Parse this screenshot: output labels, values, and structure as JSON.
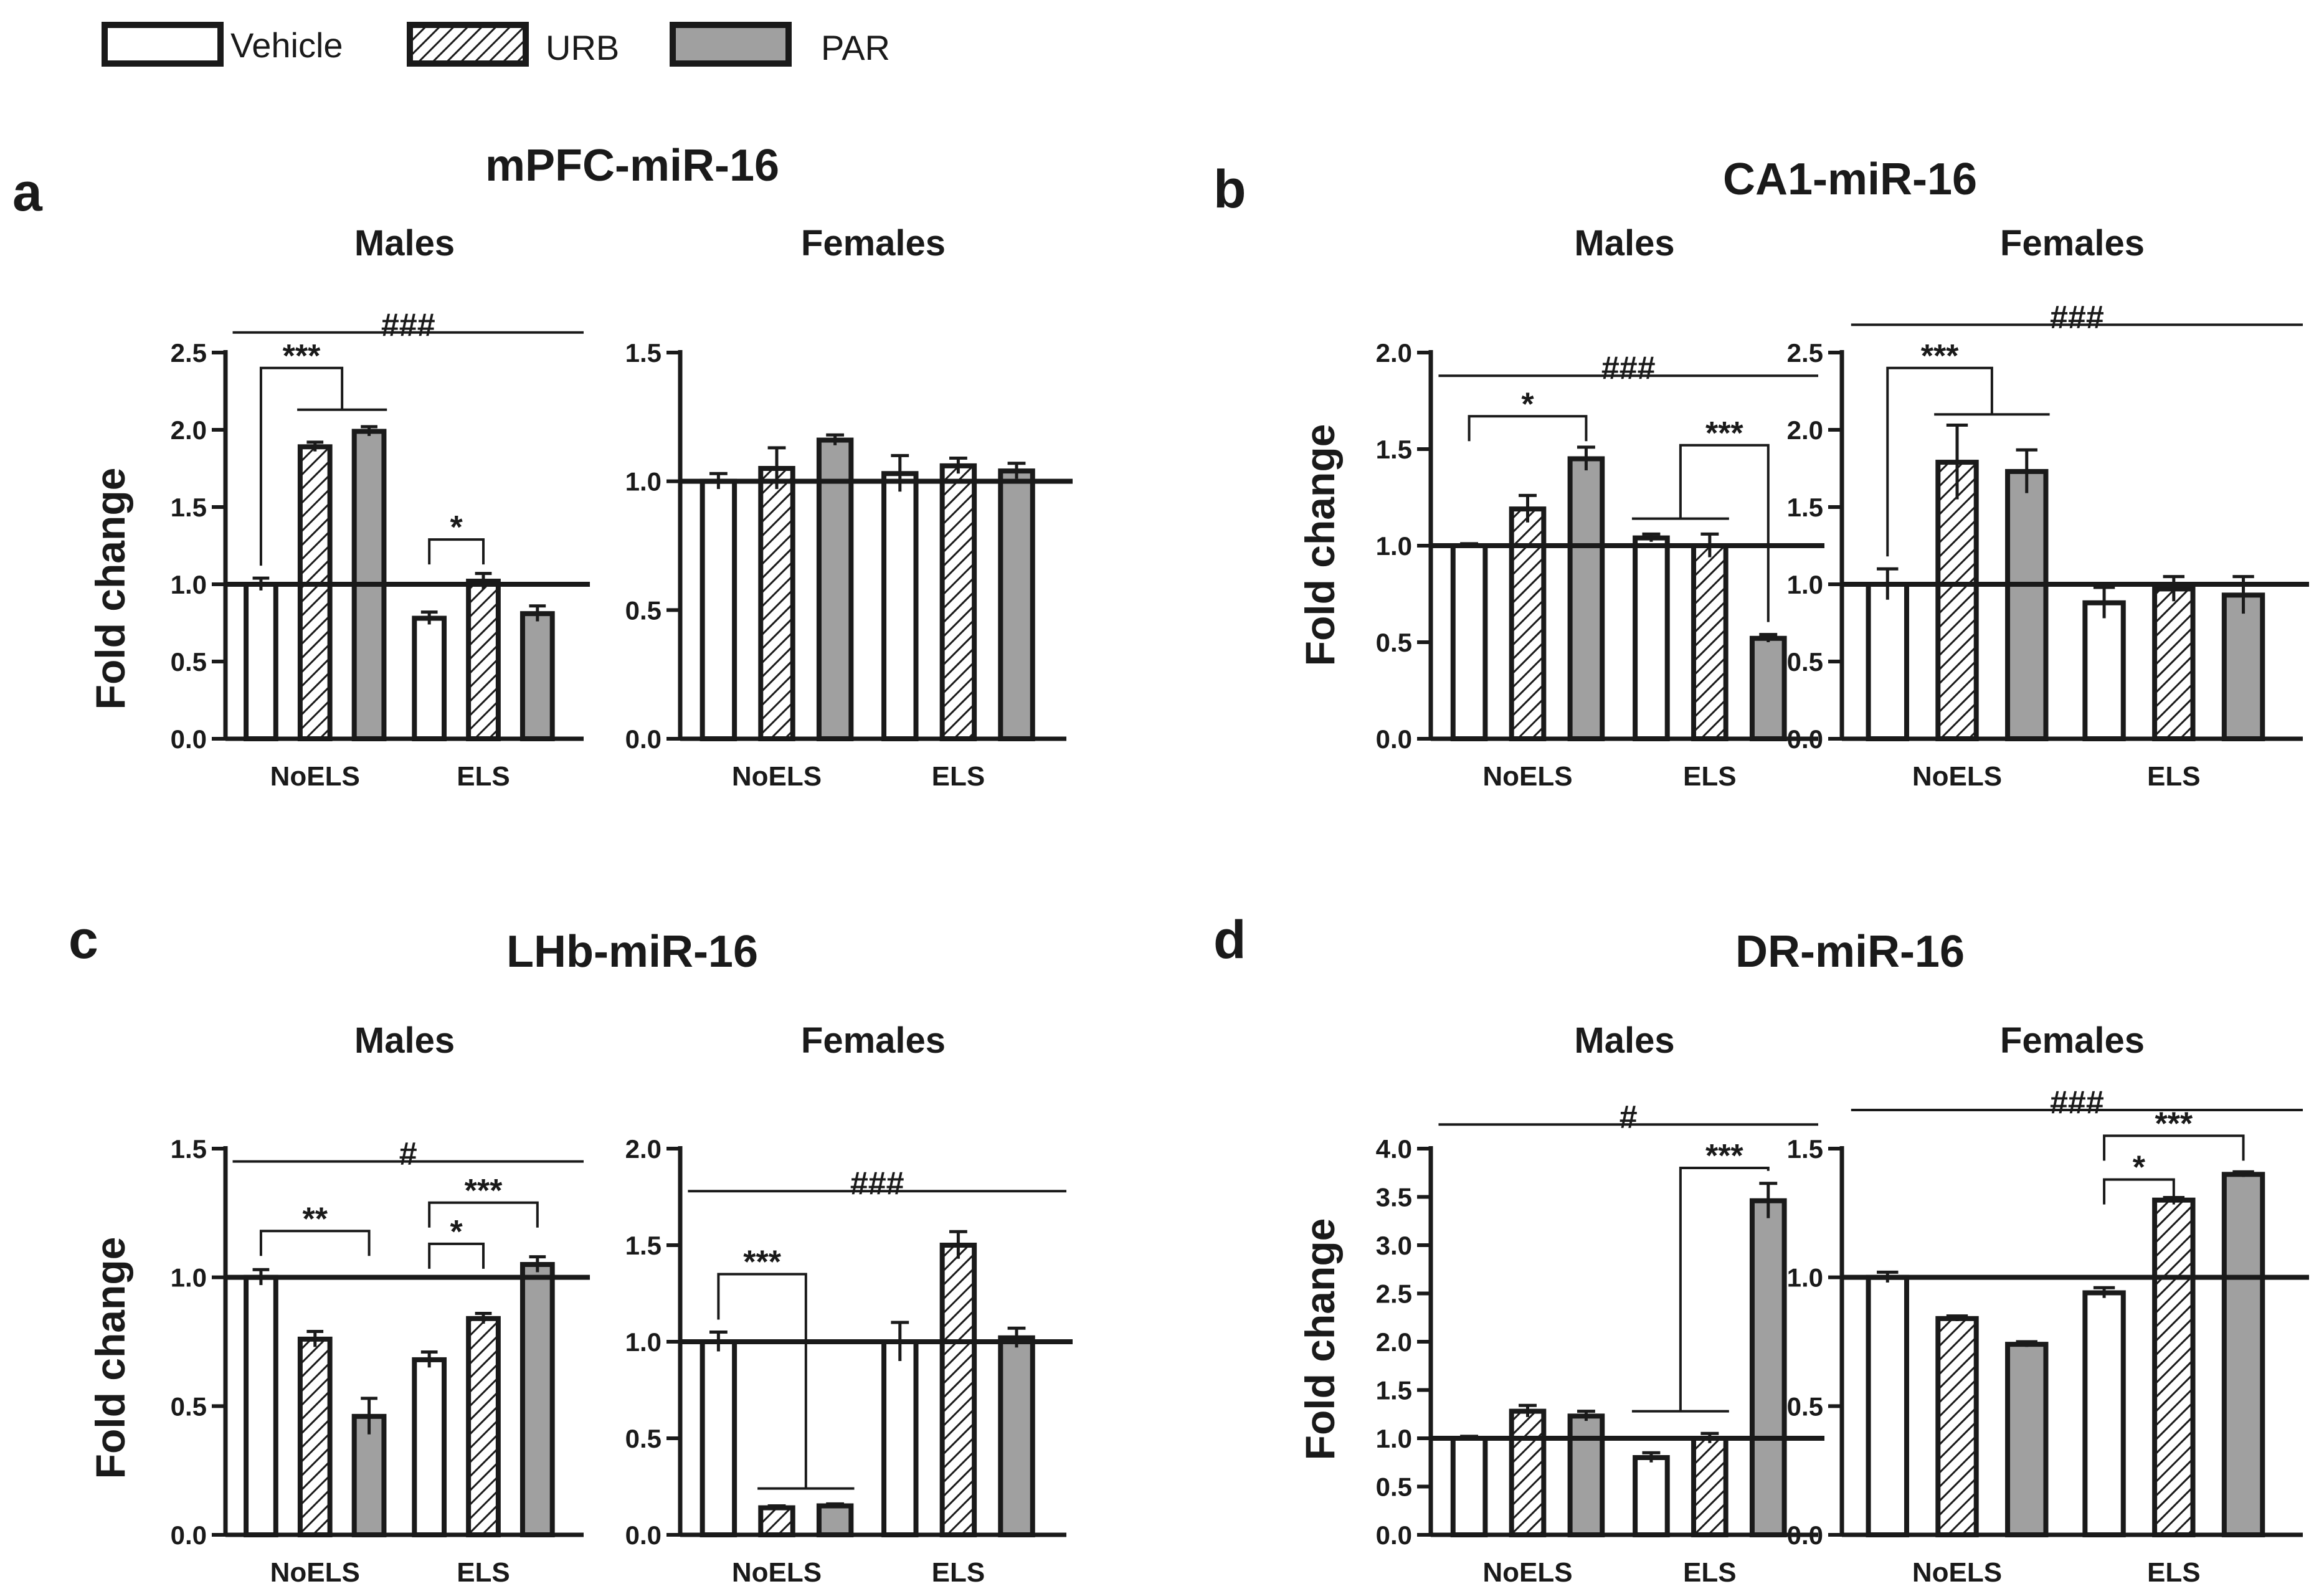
{
  "colors": {
    "vehicle_fill": "#ffffff",
    "par_fill": "#a0a0a0",
    "stroke": "#1a1a1a",
    "text": "#1a1a1a"
  },
  "legend": [
    {
      "label": "Vehicle",
      "pattern": "white"
    },
    {
      "label": "URB",
      "pattern": "hatch"
    },
    {
      "label": "PAR",
      "pattern": "grey"
    }
  ],
  "y_axis_label": "Fold change",
  "chart_data": [
    {
      "panel_letter": "a",
      "title": "mPFC-miR-16",
      "type": "bar",
      "subplots": [
        {
          "name": "Males",
          "ylim": [
            0,
            2.5
          ],
          "yticks": [
            "0.0",
            "0.5",
            "1.0",
            "1.5",
            "2.0",
            "2.5"
          ],
          "categories": [
            "NoELS",
            "ELS"
          ],
          "series": [
            {
              "name": "Vehicle",
              "values": [
                1.0,
                0.78
              ],
              "errors": [
                0.04,
                0.04
              ]
            },
            {
              "name": "URB",
              "values": [
                1.89,
                1.02
              ],
              "errors": [
                0.03,
                0.05
              ]
            },
            {
              "name": "PAR",
              "values": [
                1.99,
                0.81
              ],
              "errors": [
                0.03,
                0.05
              ]
            }
          ],
          "annotations": [
            {
              "type": "line",
              "text": "###",
              "y": 2.63,
              "from": [
                0,
                0
              ],
              "to": [
                1,
                2
              ]
            },
            {
              "type": "bracket_multi",
              "text": "***",
              "y": 2.4,
              "from": [
                0,
                0
              ],
              "to_group": [
                [
                  0,
                  1
                ],
                [
                  0,
                  2
                ]
              ],
              "to_y": 2.13
            },
            {
              "type": "bracket",
              "text": "*",
              "y": 1.29,
              "from": [
                1,
                0
              ],
              "to": [
                1,
                1
              ]
            }
          ]
        },
        {
          "name": "Females",
          "ylim": [
            0,
            1.5
          ],
          "yticks": [
            "0.0",
            "0.5",
            "1.0",
            "1.5"
          ],
          "categories": [
            "NoELS",
            "ELS"
          ],
          "series": [
            {
              "name": "Vehicle",
              "values": [
                1.0,
                1.03
              ],
              "errors": [
                0.03,
                0.07
              ]
            },
            {
              "name": "URB",
              "values": [
                1.05,
                1.06
              ],
              "errors": [
                0.08,
                0.03
              ]
            },
            {
              "name": "PAR",
              "values": [
                1.16,
                1.04
              ],
              "errors": [
                0.02,
                0.03
              ]
            }
          ],
          "annotations": []
        }
      ]
    },
    {
      "panel_letter": "b",
      "title": "CA1-miR-16",
      "type": "bar",
      "subplots": [
        {
          "name": "Males",
          "ylim": [
            0,
            2.0
          ],
          "yticks": [
            "0.0",
            "0.5",
            "1.0",
            "1.5",
            "2.0"
          ],
          "categories": [
            "NoELS",
            "ELS"
          ],
          "series": [
            {
              "name": "Vehicle",
              "values": [
                1.0,
                1.04
              ],
              "errors": [
                0.01,
                0.02
              ]
            },
            {
              "name": "URB",
              "values": [
                1.19,
                1.0
              ],
              "errors": [
                0.07,
                0.06
              ]
            },
            {
              "name": "PAR",
              "values": [
                1.45,
                0.52
              ],
              "errors": [
                0.06,
                0.02
              ]
            }
          ],
          "annotations": [
            {
              "type": "line",
              "text": "###",
              "y": 1.88,
              "from": [
                0,
                0
              ],
              "to": [
                1,
                2
              ]
            },
            {
              "type": "bracket",
              "text": "*",
              "y": 1.67,
              "from": [
                0,
                0
              ],
              "to": [
                0,
                2
              ]
            },
            {
              "type": "bracket_multi_right",
              "text": "***",
              "y": 1.52,
              "to": [
                1,
                2
              ],
              "from_group": [
                [
                  1,
                  0
                ],
                [
                  1,
                  1
                ]
              ],
              "from_y": 1.14
            }
          ]
        },
        {
          "name": "Females",
          "ylim": [
            0,
            2.5
          ],
          "yticks": [
            "0.0",
            "0.5",
            "1.0",
            "1.5",
            "2.0",
            "2.5"
          ],
          "categories": [
            "NoELS",
            "ELS"
          ],
          "series": [
            {
              "name": "Vehicle",
              "values": [
                1.0,
                0.88
              ],
              "errors": [
                0.1,
                0.1
              ]
            },
            {
              "name": "URB",
              "values": [
                1.79,
                0.97
              ],
              "errors": [
                0.24,
                0.08
              ]
            },
            {
              "name": "PAR",
              "values": [
                1.73,
                0.93
              ],
              "errors": [
                0.14,
                0.12
              ]
            }
          ],
          "annotations": [
            {
              "type": "line",
              "text": "###",
              "y": 2.68,
              "from": [
                0,
                0
              ],
              "to": [
                1,
                2
              ]
            },
            {
              "type": "bracket_multi",
              "text": "***",
              "y": 2.4,
              "from": [
                0,
                0
              ],
              "to_group": [
                [
                  0,
                  1
                ],
                [
                  0,
                  2
                ]
              ],
              "to_y": 2.1
            }
          ]
        }
      ]
    },
    {
      "panel_letter": "c",
      "title": "LHb-miR-16",
      "type": "bar",
      "subplots": [
        {
          "name": "Males",
          "ylim": [
            0,
            1.5
          ],
          "yticks": [
            "0.0",
            "0.5",
            "1.0",
            "1.5"
          ],
          "categories": [
            "NoELS",
            "ELS"
          ],
          "series": [
            {
              "name": "Vehicle",
              "values": [
                1.0,
                0.68
              ],
              "errors": [
                0.03,
                0.03
              ]
            },
            {
              "name": "URB",
              "values": [
                0.76,
                0.84
              ],
              "errors": [
                0.03,
                0.02
              ]
            },
            {
              "name": "PAR",
              "values": [
                0.46,
                1.05
              ],
              "errors": [
                0.07,
                0.03
              ]
            }
          ],
          "annotations": [
            {
              "type": "line",
              "text": "#",
              "y": 1.45,
              "from": [
                0,
                0
              ],
              "to": [
                1,
                2
              ]
            },
            {
              "type": "bracket",
              "text": "**",
              "y": 1.18,
              "from": [
                0,
                0
              ],
              "to": [
                0,
                2
              ]
            },
            {
              "type": "bracket",
              "text": "***",
              "y": 1.29,
              "from": [
                1,
                0
              ],
              "to": [
                1,
                2
              ]
            },
            {
              "type": "bracket",
              "text": "*",
              "y": 1.13,
              "from": [
                1,
                0
              ],
              "to": [
                1,
                1
              ]
            }
          ]
        },
        {
          "name": "Females",
          "ylim": [
            0,
            2.0
          ],
          "yticks": [
            "0.0",
            "0.5",
            "1.0",
            "1.5",
            "2.0"
          ],
          "categories": [
            "NoELS",
            "ELS"
          ],
          "series": [
            {
              "name": "Vehicle",
              "values": [
                1.0,
                1.0
              ],
              "errors": [
                0.05,
                0.1
              ]
            },
            {
              "name": "URB",
              "values": [
                0.14,
                1.5
              ],
              "errors": [
                0.01,
                0.07
              ]
            },
            {
              "name": "PAR",
              "values": [
                0.15,
                1.02
              ],
              "errors": [
                0.01,
                0.05
              ]
            }
          ],
          "annotations": [
            {
              "type": "line",
              "text": "###",
              "y": 1.78,
              "from": [
                0,
                0
              ],
              "to": [
                1,
                2
              ]
            },
            {
              "type": "bracket_multi",
              "text": "***",
              "y": 1.35,
              "from": [
                0,
                0
              ],
              "to_group": [
                [
                  0,
                  1
                ],
                [
                  0,
                  2
                ]
              ],
              "to_y": 0.24
            }
          ]
        }
      ]
    },
    {
      "panel_letter": "d",
      "title": "DR-miR-16",
      "type": "bar",
      "subplots": [
        {
          "name": "Males",
          "ylim": [
            0,
            4.0
          ],
          "yticks": [
            "0.0",
            "0.5",
            "1.0",
            "1.5",
            "2.0",
            "2.5",
            "3.0",
            "3.5",
            "4.0"
          ],
          "categories": [
            "NoELS",
            "ELS"
          ],
          "series": [
            {
              "name": "Vehicle",
              "values": [
                1.0,
                0.8
              ],
              "errors": [
                0.02,
                0.05
              ]
            },
            {
              "name": "URB",
              "values": [
                1.28,
                1.0
              ],
              "errors": [
                0.06,
                0.05
              ]
            },
            {
              "name": "PAR",
              "values": [
                1.23,
                3.46
              ],
              "errors": [
                0.05,
                0.18
              ]
            }
          ],
          "annotations": [
            {
              "type": "line",
              "text": "#",
              "y": 4.25,
              "from": [
                0,
                0
              ],
              "to": [
                1,
                2
              ]
            },
            {
              "type": "bracket_multi_right",
              "text": "***",
              "y": 3.8,
              "to": [
                1,
                2
              ],
              "from_group": [
                [
                  1,
                  0
                ],
                [
                  1,
                  1
                ]
              ],
              "from_y": 1.28
            }
          ]
        },
        {
          "name": "Females",
          "ylim": [
            0,
            1.5
          ],
          "yticks": [
            "0.0",
            "0.5",
            "1.0",
            "1.5"
          ],
          "categories": [
            "NoELS",
            "ELS"
          ],
          "series": [
            {
              "name": "Vehicle",
              "values": [
                1.0,
                0.94
              ],
              "errors": [
                0.02,
                0.02
              ]
            },
            {
              "name": "URB",
              "values": [
                0.84,
                1.3
              ],
              "errors": [
                0.01,
                0.01
              ]
            },
            {
              "name": "PAR",
              "values": [
                0.74,
                1.4
              ],
              "errors": [
                0.01,
                0.01
              ]
            }
          ],
          "annotations": [
            {
              "type": "line",
              "text": "###",
              "y": 1.65,
              "from": [
                0,
                0
              ],
              "to": [
                1,
                2
              ]
            },
            {
              "type": "bracket",
              "text": "***",
              "y": 1.55,
              "from": [
                1,
                0
              ],
              "to": [
                1,
                2
              ]
            },
            {
              "type": "bracket",
              "text": "*",
              "y": 1.38,
              "from": [
                1,
                0
              ],
              "to": [
                1,
                1
              ]
            }
          ]
        }
      ]
    }
  ]
}
